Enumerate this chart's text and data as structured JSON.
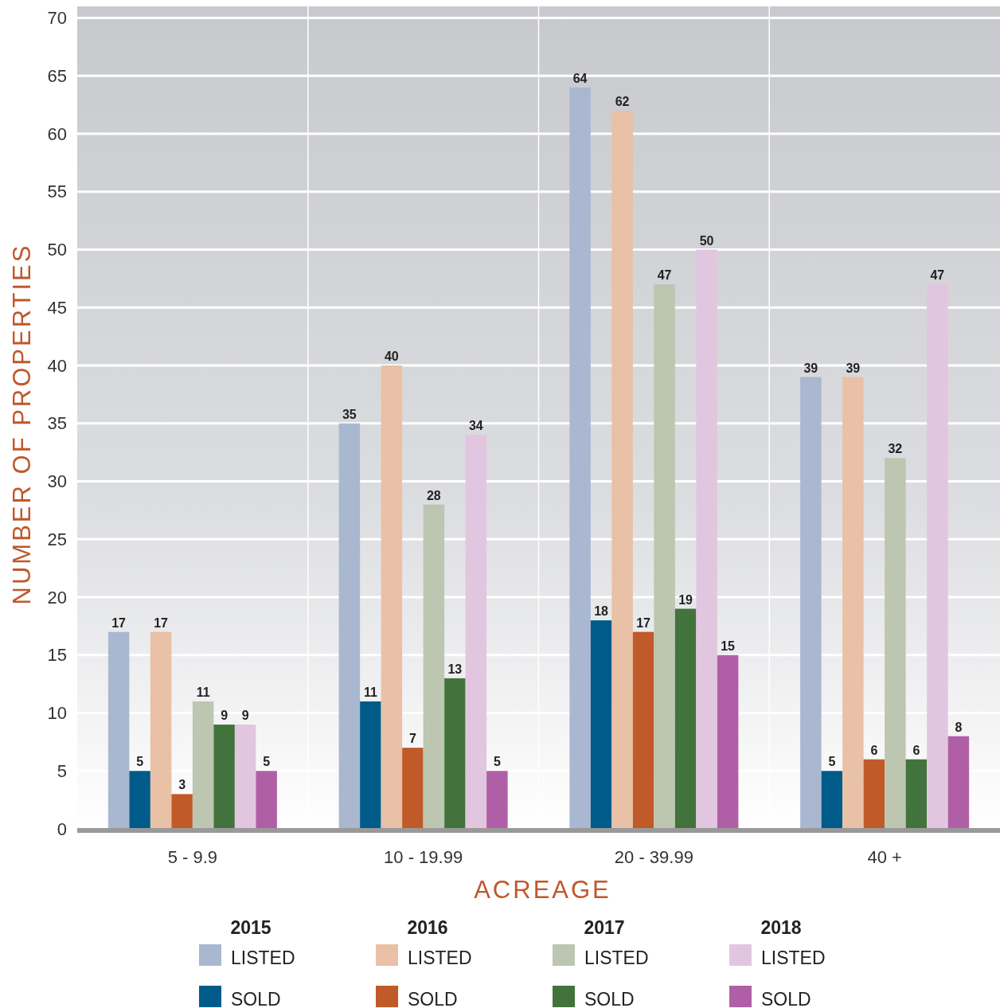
{
  "chart_data": {
    "type": "bar",
    "xlabel": "ACREAGE",
    "ylabel": "NUMBER OF PROPERTIES",
    "categories": [
      "5 - 9.9",
      "10 - 19.99",
      "20 - 39.99",
      "40 +"
    ],
    "series": [
      {
        "name": "LISTED",
        "color": "#a9b8d0",
        "values": [
          17,
          35,
          64,
          39
        ]
      },
      {
        "name": "SOLD",
        "color": "#005b8a",
        "values": [
          5,
          11,
          18,
          5
        ]
      },
      {
        "name": "LISTED",
        "color": "#e8c1a6",
        "values": [
          17,
          40,
          62,
          39
        ]
      },
      {
        "name": "SOLD",
        "color": "#c05a28",
        "values": [
          3,
          7,
          17,
          6
        ]
      },
      {
        "name": "LISTED",
        "color": "#bcc6b0",
        "values": [
          11,
          28,
          47,
          32
        ]
      },
      {
        "name": "SOLD",
        "color": "#43733c",
        "values": [
          9,
          13,
          19,
          6
        ]
      },
      {
        "name": "LISTED",
        "color": "#e2c6e0",
        "values": [
          9,
          34,
          50,
          47
        ]
      },
      {
        "name": "SOLD",
        "color": "#b05fa7",
        "values": [
          5,
          5,
          15,
          8
        ]
      }
    ],
    "annotations": [
      "2015",
      "2016",
      "2017",
      "2018"
    ],
    "ylim": [
      0,
      71
    ],
    "yticks": [
      0,
      5,
      10,
      15,
      20,
      25,
      30,
      35,
      40,
      45,
      50,
      55,
      60,
      65,
      70
    ],
    "grid": true,
    "legend": "bottom",
    "data_labels": true
  }
}
